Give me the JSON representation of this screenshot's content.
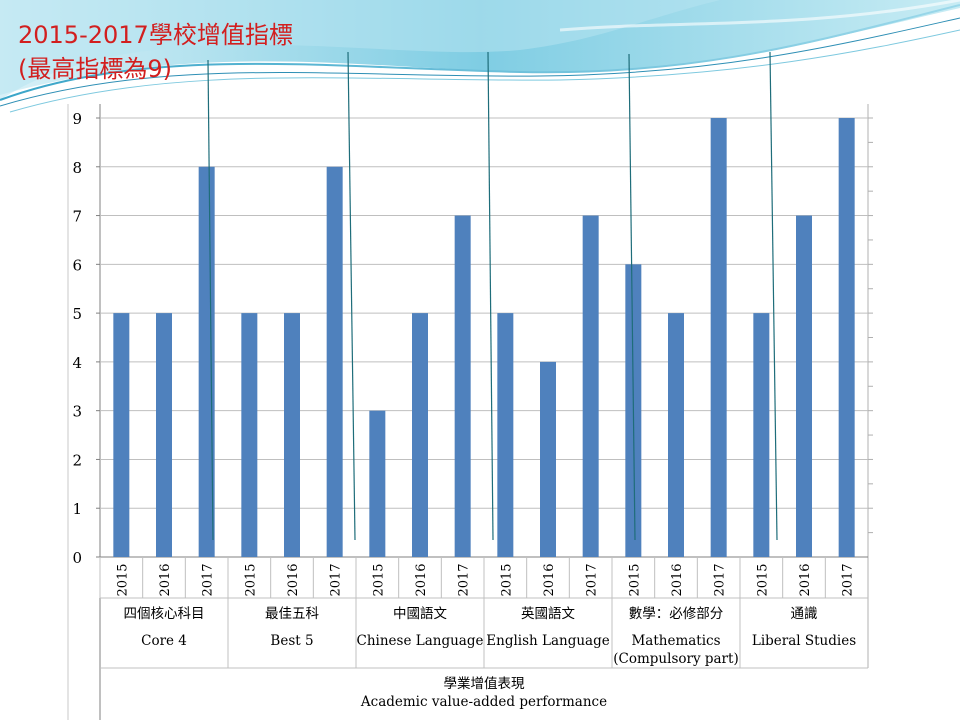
{
  "slide": {
    "title_line1": "2015-2017學校增值指標",
    "title_line2": " (最高指標為9)"
  },
  "chart_data": {
    "type": "bar",
    "ylim": [
      0,
      9
    ],
    "yticks": [
      "0",
      "1",
      "2",
      "3",
      "4",
      "5",
      "6",
      "7",
      "8",
      "9"
    ],
    "bar_color": "#4f81bd",
    "year_labels": [
      "2015",
      "2016",
      "2017"
    ],
    "groups": [
      {
        "zh": "四個核心科目",
        "en": "Core 4",
        "values": [
          5,
          5,
          8
        ]
      },
      {
        "zh": "最佳五科",
        "en": "Best 5",
        "values": [
          5,
          5,
          8
        ]
      },
      {
        "zh": "中國語文",
        "en": "Chinese Language",
        "values": [
          3,
          5,
          7
        ]
      },
      {
        "zh": "英國語文",
        "en": "English Language",
        "values": [
          5,
          4,
          7
        ]
      },
      {
        "zh": "數學：必修部分",
        "en": "Mathematics",
        "en2": "(Compulsory part)",
        "values": [
          6,
          5,
          9
        ]
      },
      {
        "zh": "通識",
        "en": "Liberal Studies",
        "values": [
          5,
          7,
          9
        ]
      }
    ],
    "xlabel_zh": "學業增值表現",
    "xlabel_en": "Academic value-added performance"
  }
}
